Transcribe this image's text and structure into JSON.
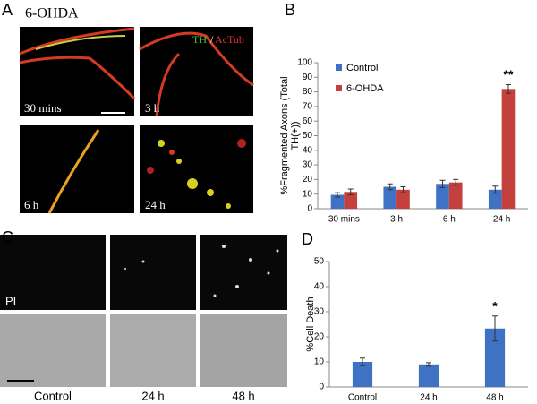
{
  "panels": {
    "a": "A",
    "b": "B",
    "c": "C",
    "d": "D"
  },
  "panel_a": {
    "title": "6-OHDA",
    "stain_green": "TH",
    "stain_sep": "/",
    "stain_red": "AcTub",
    "images": [
      "30 mins",
      "3 h",
      "6 h",
      "24 h"
    ]
  },
  "panel_c": {
    "stain": "PI",
    "images": [
      "Control",
      "24 h",
      "48 h"
    ]
  },
  "chart_data": [
    {
      "type": "bar",
      "ylabel": [
        "%Fragmented Axons (Total",
        "TH(+))"
      ],
      "categories": [
        "30 mins",
        "3 h",
        "6 h",
        "24 h"
      ],
      "series": [
        {
          "name": "Control",
          "color": "#3f72c4",
          "values": [
            9.5,
            15,
            17,
            13
          ],
          "errors": [
            1.5,
            2,
            2.5,
            2.5
          ]
        },
        {
          "name": "6-OHDA",
          "color": "#c4403d",
          "values": [
            11.5,
            13,
            18,
            82
          ],
          "errors": [
            2,
            2,
            2,
            3
          ]
        }
      ],
      "annotation": "**",
      "ylim": [
        0,
        100
      ],
      "yticks": [
        0,
        10,
        20,
        30,
        40,
        50,
        60,
        70,
        80,
        90,
        100
      ],
      "legend": "upper-left"
    },
    {
      "type": "bar",
      "ylabel": [
        "%Cell Death"
      ],
      "categories": [
        "Control",
        "24 h",
        "48 h"
      ],
      "series": [
        {
          "name": null,
          "color": "#3f72c4",
          "values": [
            10,
            9,
            23.3
          ],
          "errors": [
            1.5,
            0.7,
            5
          ]
        }
      ],
      "annotation": "*",
      "ylim": [
        0,
        50
      ],
      "yticks": [
        0,
        10,
        20,
        30,
        40,
        50
      ]
    }
  ]
}
